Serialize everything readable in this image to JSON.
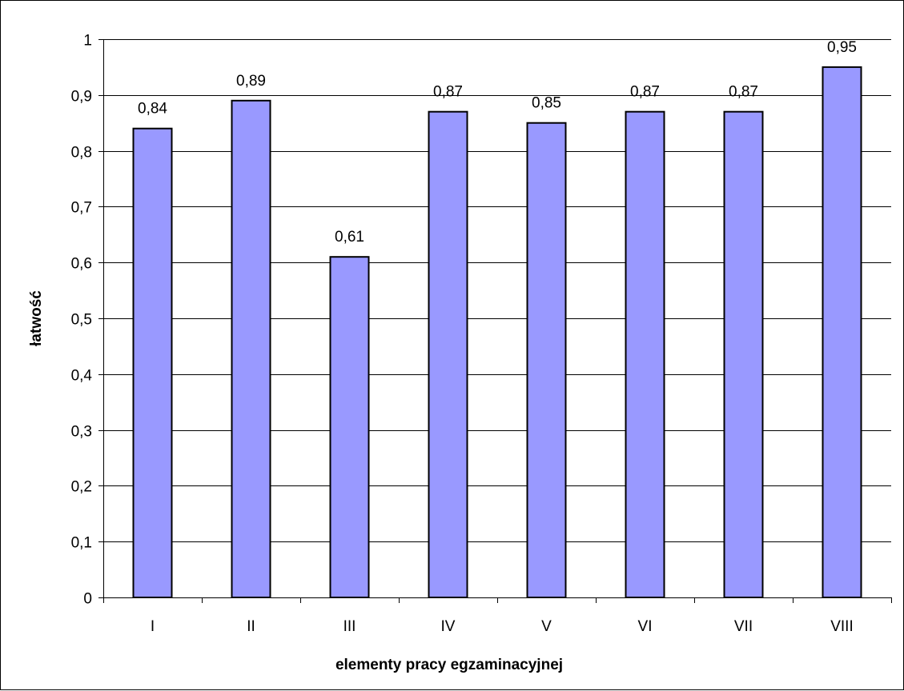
{
  "chart_data": {
    "type": "bar",
    "title": "",
    "xlabel": "elementy pracy egzaminacyjnej",
    "ylabel": "łatwość",
    "categories": [
      "I",
      "II",
      "III",
      "IV",
      "V",
      "VI",
      "VII",
      "VIII"
    ],
    "values": [
      0.84,
      0.89,
      0.61,
      0.87,
      0.85,
      0.87,
      0.87,
      0.95
    ],
    "value_labels": [
      "0,84",
      "0,89",
      "0,61",
      "0,87",
      "0,85",
      "0,87",
      "0,87",
      "0,95"
    ],
    "ylim": [
      0,
      1
    ],
    "yticks": [
      0,
      0.1,
      0.2,
      0.3,
      0.4,
      0.5,
      0.6,
      0.7,
      0.8,
      0.9,
      1
    ],
    "ytick_labels": [
      "0",
      "0,1",
      "0,2",
      "0,3",
      "0,4",
      "0,5",
      "0,6",
      "0,7",
      "0,8",
      "0,9",
      "1"
    ],
    "grid": true,
    "legend": "none",
    "colors": {
      "bar_fill": "#9999FF",
      "bar_stroke": "#000000",
      "grid": "#000000"
    }
  }
}
